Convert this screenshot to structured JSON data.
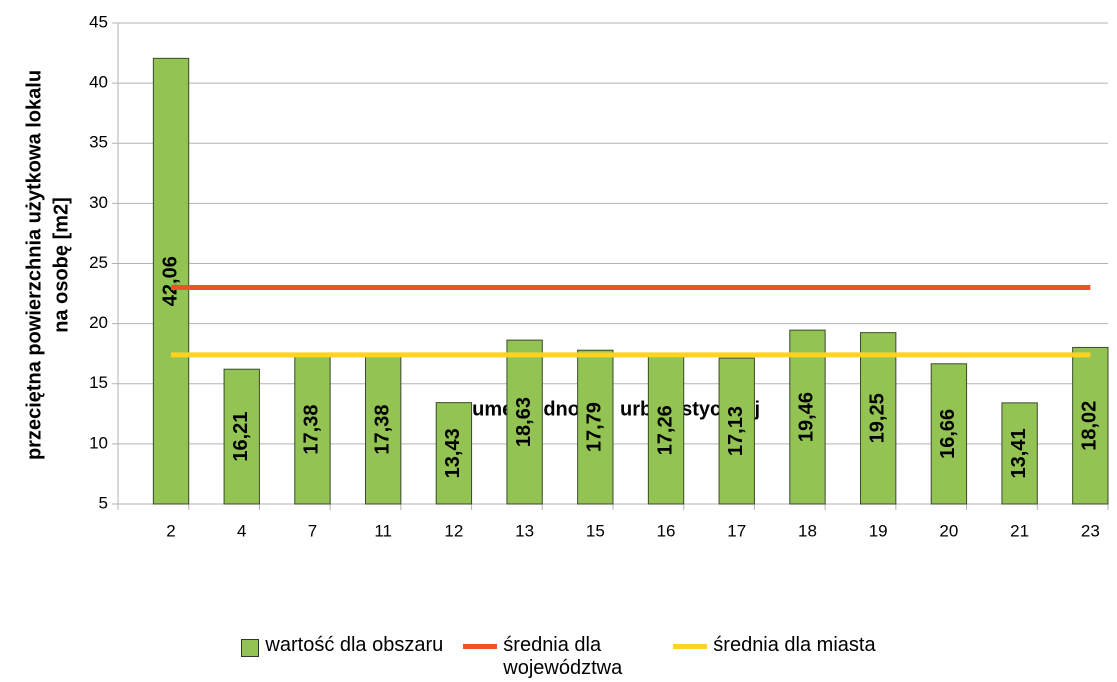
{
  "chart_data": {
    "type": "bar",
    "y_label": [
      "przeciętna powierzchnia użytkowa lokalu",
      "na osobę [m2]"
    ],
    "x_label": "numer jednostki urbanistycznej",
    "categories": [
      "2",
      "4",
      "7",
      "11",
      "12",
      "13",
      "15",
      "16",
      "17",
      "18",
      "19",
      "20",
      "21",
      "23"
    ],
    "series": [
      {
        "name": "wartość dla obszaru",
        "type": "bar",
        "color": "#92c353",
        "values": [
          42.06,
          16.21,
          17.38,
          17.38,
          13.43,
          18.63,
          17.79,
          17.26,
          17.13,
          19.46,
          19.25,
          16.66,
          13.41,
          18.02
        ],
        "value_labels": [
          "42,06",
          "16,21",
          "17,38",
          "17,38",
          "13,43",
          "18,63",
          "17,79",
          "17,26",
          "17,13",
          "19,46",
          "19,25",
          "16,66",
          "13,41",
          "18,02"
        ]
      },
      {
        "name": "średnia dla województwa",
        "type": "line",
        "color": "#f0502a",
        "values": [
          23,
          23,
          23,
          23,
          23,
          23,
          23,
          23,
          23,
          23,
          23,
          23,
          23,
          23
        ]
      },
      {
        "name": "średnia dla miasta",
        "type": "line",
        "color": "#ffd320",
        "values": [
          17.4,
          17.4,
          17.4,
          17.4,
          17.4,
          17.4,
          17.4,
          17.4,
          17.4,
          17.4,
          17.4,
          17.4,
          17.4,
          17.4
        ]
      }
    ],
    "ylim": [
      5,
      45
    ],
    "yticks": [
      5,
      10,
      15,
      20,
      25,
      30,
      35,
      40,
      45
    ],
    "grid": true,
    "legend": "bottom"
  }
}
